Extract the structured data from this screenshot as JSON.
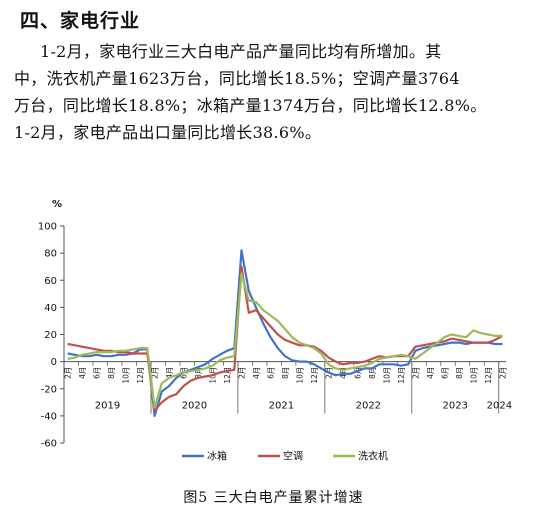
{
  "section": {
    "title": "四、家电行业"
  },
  "paragraph": {
    "line1": "1-2月，家电行业三大白电产品产量同比均有所增加。其",
    "line2": "中，洗衣机产量1623万台，同比增长18.5%；空调产量3764",
    "line3": "万台，同比增长18.8%；冰箱产量1374万台，同比增长12.8%。",
    "line4": "1-2月，家电产品出口量同比增长38.6%。"
  },
  "caption": "图5  三大白电产量累计增速",
  "chart_data": {
    "type": "line",
    "unit_label": "%",
    "ylim": [
      -60,
      100
    ],
    "yticks": [
      -60,
      -40,
      -20,
      0,
      20,
      40,
      60,
      80,
      100
    ],
    "grid": false,
    "legend_position": "bottom",
    "month_labels": [
      "2月",
      "4月",
      "6月",
      "8月",
      "10月",
      "12月",
      "2月",
      "4月",
      "6月",
      "8月",
      "10月",
      "12月",
      "2月",
      "4月",
      "6月",
      "8月",
      "10月",
      "12月",
      "2月",
      "4月",
      "6月",
      "8月",
      "10月",
      "12月",
      "2月",
      "4月",
      "6月",
      "8月",
      "10月",
      "12月",
      "2月"
    ],
    "years": [
      {
        "label": "2019",
        "from": 0,
        "to": 5
      },
      {
        "label": "2020",
        "from": 6,
        "to": 11
      },
      {
        "label": "2021",
        "from": 12,
        "to": 17
      },
      {
        "label": "2022",
        "from": 18,
        "to": 23
      },
      {
        "label": "2023",
        "from": 24,
        "to": 29
      },
      {
        "label": "2024",
        "from": 30,
        "to": 30
      }
    ],
    "series": [
      {
        "name": "冰箱",
        "color": "#4472C4",
        "values": [
          6,
          5,
          4,
          4,
          5,
          4,
          4,
          5,
          5,
          6,
          9,
          9,
          -40,
          -22,
          -18,
          -12,
          -8,
          -6,
          -4,
          -2,
          2,
          5,
          8,
          10,
          82,
          52,
          40,
          28,
          18,
          10,
          4,
          1,
          0,
          0,
          -2,
          -5,
          -8,
          -10,
          -9,
          -9,
          -7,
          -5,
          -5,
          -2,
          -2,
          -2,
          -3,
          -2,
          8,
          10,
          11,
          12,
          13,
          14,
          14,
          13,
          14,
          14,
          14,
          13,
          13
        ]
      },
      {
        "name": "空调",
        "color": "#C0504D",
        "values": [
          13,
          12,
          11,
          10,
          9,
          8,
          8,
          7,
          7,
          6,
          6,
          6,
          -36,
          -30,
          -26,
          -24,
          -18,
          -14,
          -12,
          -11,
          -10,
          -8,
          -7,
          -6,
          70,
          36,
          38,
          32,
          26,
          20,
          16,
          14,
          12,
          12,
          11,
          8,
          3,
          0,
          -2,
          -1,
          -1,
          0,
          2,
          4,
          3,
          4,
          4,
          4,
          11,
          12,
          13,
          14,
          15,
          17,
          16,
          15,
          14,
          14,
          14,
          16,
          19
        ]
      },
      {
        "name": "洗衣机",
        "color": "#9BBB59",
        "values": [
          2,
          3,
          5,
          6,
          7,
          7,
          7,
          8,
          8,
          9,
          10,
          10,
          -34,
          -16,
          -12,
          -10,
          -8,
          -7,
          -6,
          -5,
          -3,
          1,
          3,
          4,
          65,
          45,
          44,
          38,
          34,
          30,
          24,
          18,
          14,
          12,
          10,
          6,
          -2,
          -5,
          -6,
          -5,
          -4,
          -3,
          -1,
          2,
          3,
          4,
          5,
          4,
          2,
          6,
          10,
          14,
          18,
          20,
          19,
          18,
          23,
          21,
          20,
          19,
          19
        ]
      }
    ]
  }
}
